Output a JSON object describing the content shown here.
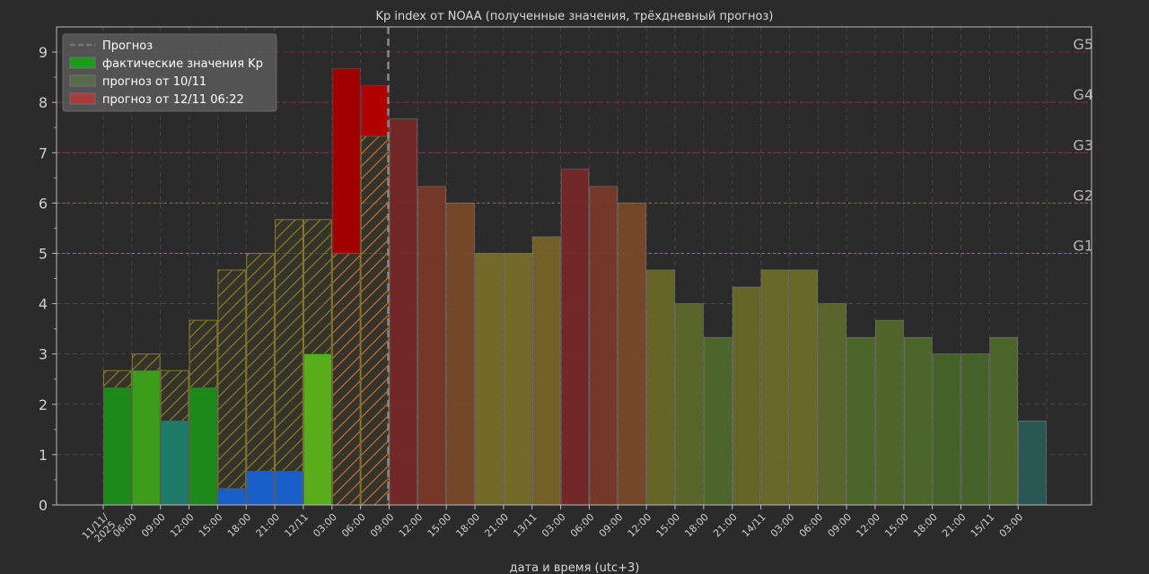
{
  "chart_data": {
    "type": "bar",
    "title": "Kp index от NOAA (полученные значения, трёхдневный прогноз)",
    "xlabel": "дата и время (utc+3)",
    "ylabel": "",
    "ylim": [
      0,
      9.5
    ],
    "yticks": [
      0,
      1,
      2,
      3,
      4,
      5,
      6,
      7,
      8,
      9
    ],
    "grid": true,
    "legend_position": "top-left",
    "legend": [
      {
        "label": "Прогноз",
        "kind": "dashed-line",
        "color": "#777777"
      },
      {
        "label": "фактические значения Kp",
        "kind": "patch",
        "color": "#1a9e1a"
      },
      {
        "label": "прогноз от 10/11",
        "kind": "patch",
        "color": "#556b4a"
      },
      {
        "label": "прогноз от 12/11 06:22",
        "kind": "patch",
        "color": "#a83a3a"
      }
    ],
    "x_tick_labels": [
      "11/11/\n2025",
      "06:00",
      "09:00",
      "12:00",
      "15:00",
      "18:00",
      "21:00",
      "12/11",
      "03:00",
      "06:00",
      "09:00",
      "12:00",
      "15:00",
      "18:00",
      "21:00",
      "13/11",
      "03:00",
      "06:00",
      "09:00",
      "12:00",
      "15:00",
      "18:00",
      "21:00",
      "14/11",
      "03:00",
      "06:00",
      "09:00",
      "12:00",
      "15:00",
      "18:00",
      "21:00",
      "15/11",
      "03:00"
    ],
    "forecast_start_index": 10,
    "thresholds": [
      {
        "label": "G1",
        "value": 5,
        "color": "#a8a000"
      },
      {
        "label": "G2",
        "value": 6,
        "color": "#c87800"
      },
      {
        "label": "G3",
        "value": 7,
        "color": "#c03030"
      },
      {
        "label": "G4",
        "value": 8,
        "color": "#c02020"
      },
      {
        "label": "G5",
        "value": 9,
        "color": "#b01010"
      }
    ],
    "series": [
      {
        "name": "фактические значения Kp",
        "x_index": [
          1,
          2,
          3,
          4,
          5,
          6,
          7,
          8,
          9,
          10
        ],
        "values": [
          2.33,
          2.67,
          1.67,
          2.33,
          0.33,
          0.67,
          0.67,
          3.0,
          8.67,
          8.33
        ],
        "colors": [
          "#1b8a1b",
          "#3a9e1a",
          "#1f7a6a",
          "#1b8a1b",
          "#1a5fc8",
          "#1a5fc8",
          "#1a5fc8",
          "#5aad1a",
          "#a00000",
          "#b00000"
        ]
      },
      {
        "name": "прогноз от 10/11",
        "x_index": [
          1,
          2,
          3,
          4,
          5,
          6,
          7,
          8,
          9,
          10
        ],
        "values": [
          2.67,
          3.0,
          2.67,
          3.67,
          4.67,
          5.0,
          5.67,
          5.67,
          5.0,
          7.33
        ]
      },
      {
        "name": "прогноз от 12/11 06:22",
        "x_index": [
          11,
          12,
          13,
          14,
          15,
          16,
          17,
          18,
          19,
          20,
          21,
          22,
          23,
          24,
          25,
          26,
          27,
          28,
          29,
          30,
          31,
          32,
          33
        ],
        "values": [
          7.67,
          6.33,
          6.0,
          5.0,
          5.0,
          5.33,
          6.67,
          6.33,
          6.0,
          4.67,
          4.0,
          3.33,
          4.33,
          4.67,
          4.67,
          4.0,
          3.33,
          3.67,
          3.33,
          3.0,
          3.0,
          3.33,
          1.67
        ],
        "colors": [
          "#7a2828",
          "#7a3a28",
          "#7a4a28",
          "#7a7028",
          "#7a7028",
          "#7a6428",
          "#7a2828",
          "#7a3a28",
          "#7a4a28",
          "#6a6a28",
          "#5e6a2a",
          "#4e6a2a",
          "#6a6a28",
          "#6e6e28",
          "#6e6e28",
          "#5e6a2a",
          "#4e6a2a",
          "#526a2a",
          "#4e6a2a",
          "#46662a",
          "#46662a",
          "#4e6a2a",
          "#2a5a58"
        ]
      }
    ]
  }
}
